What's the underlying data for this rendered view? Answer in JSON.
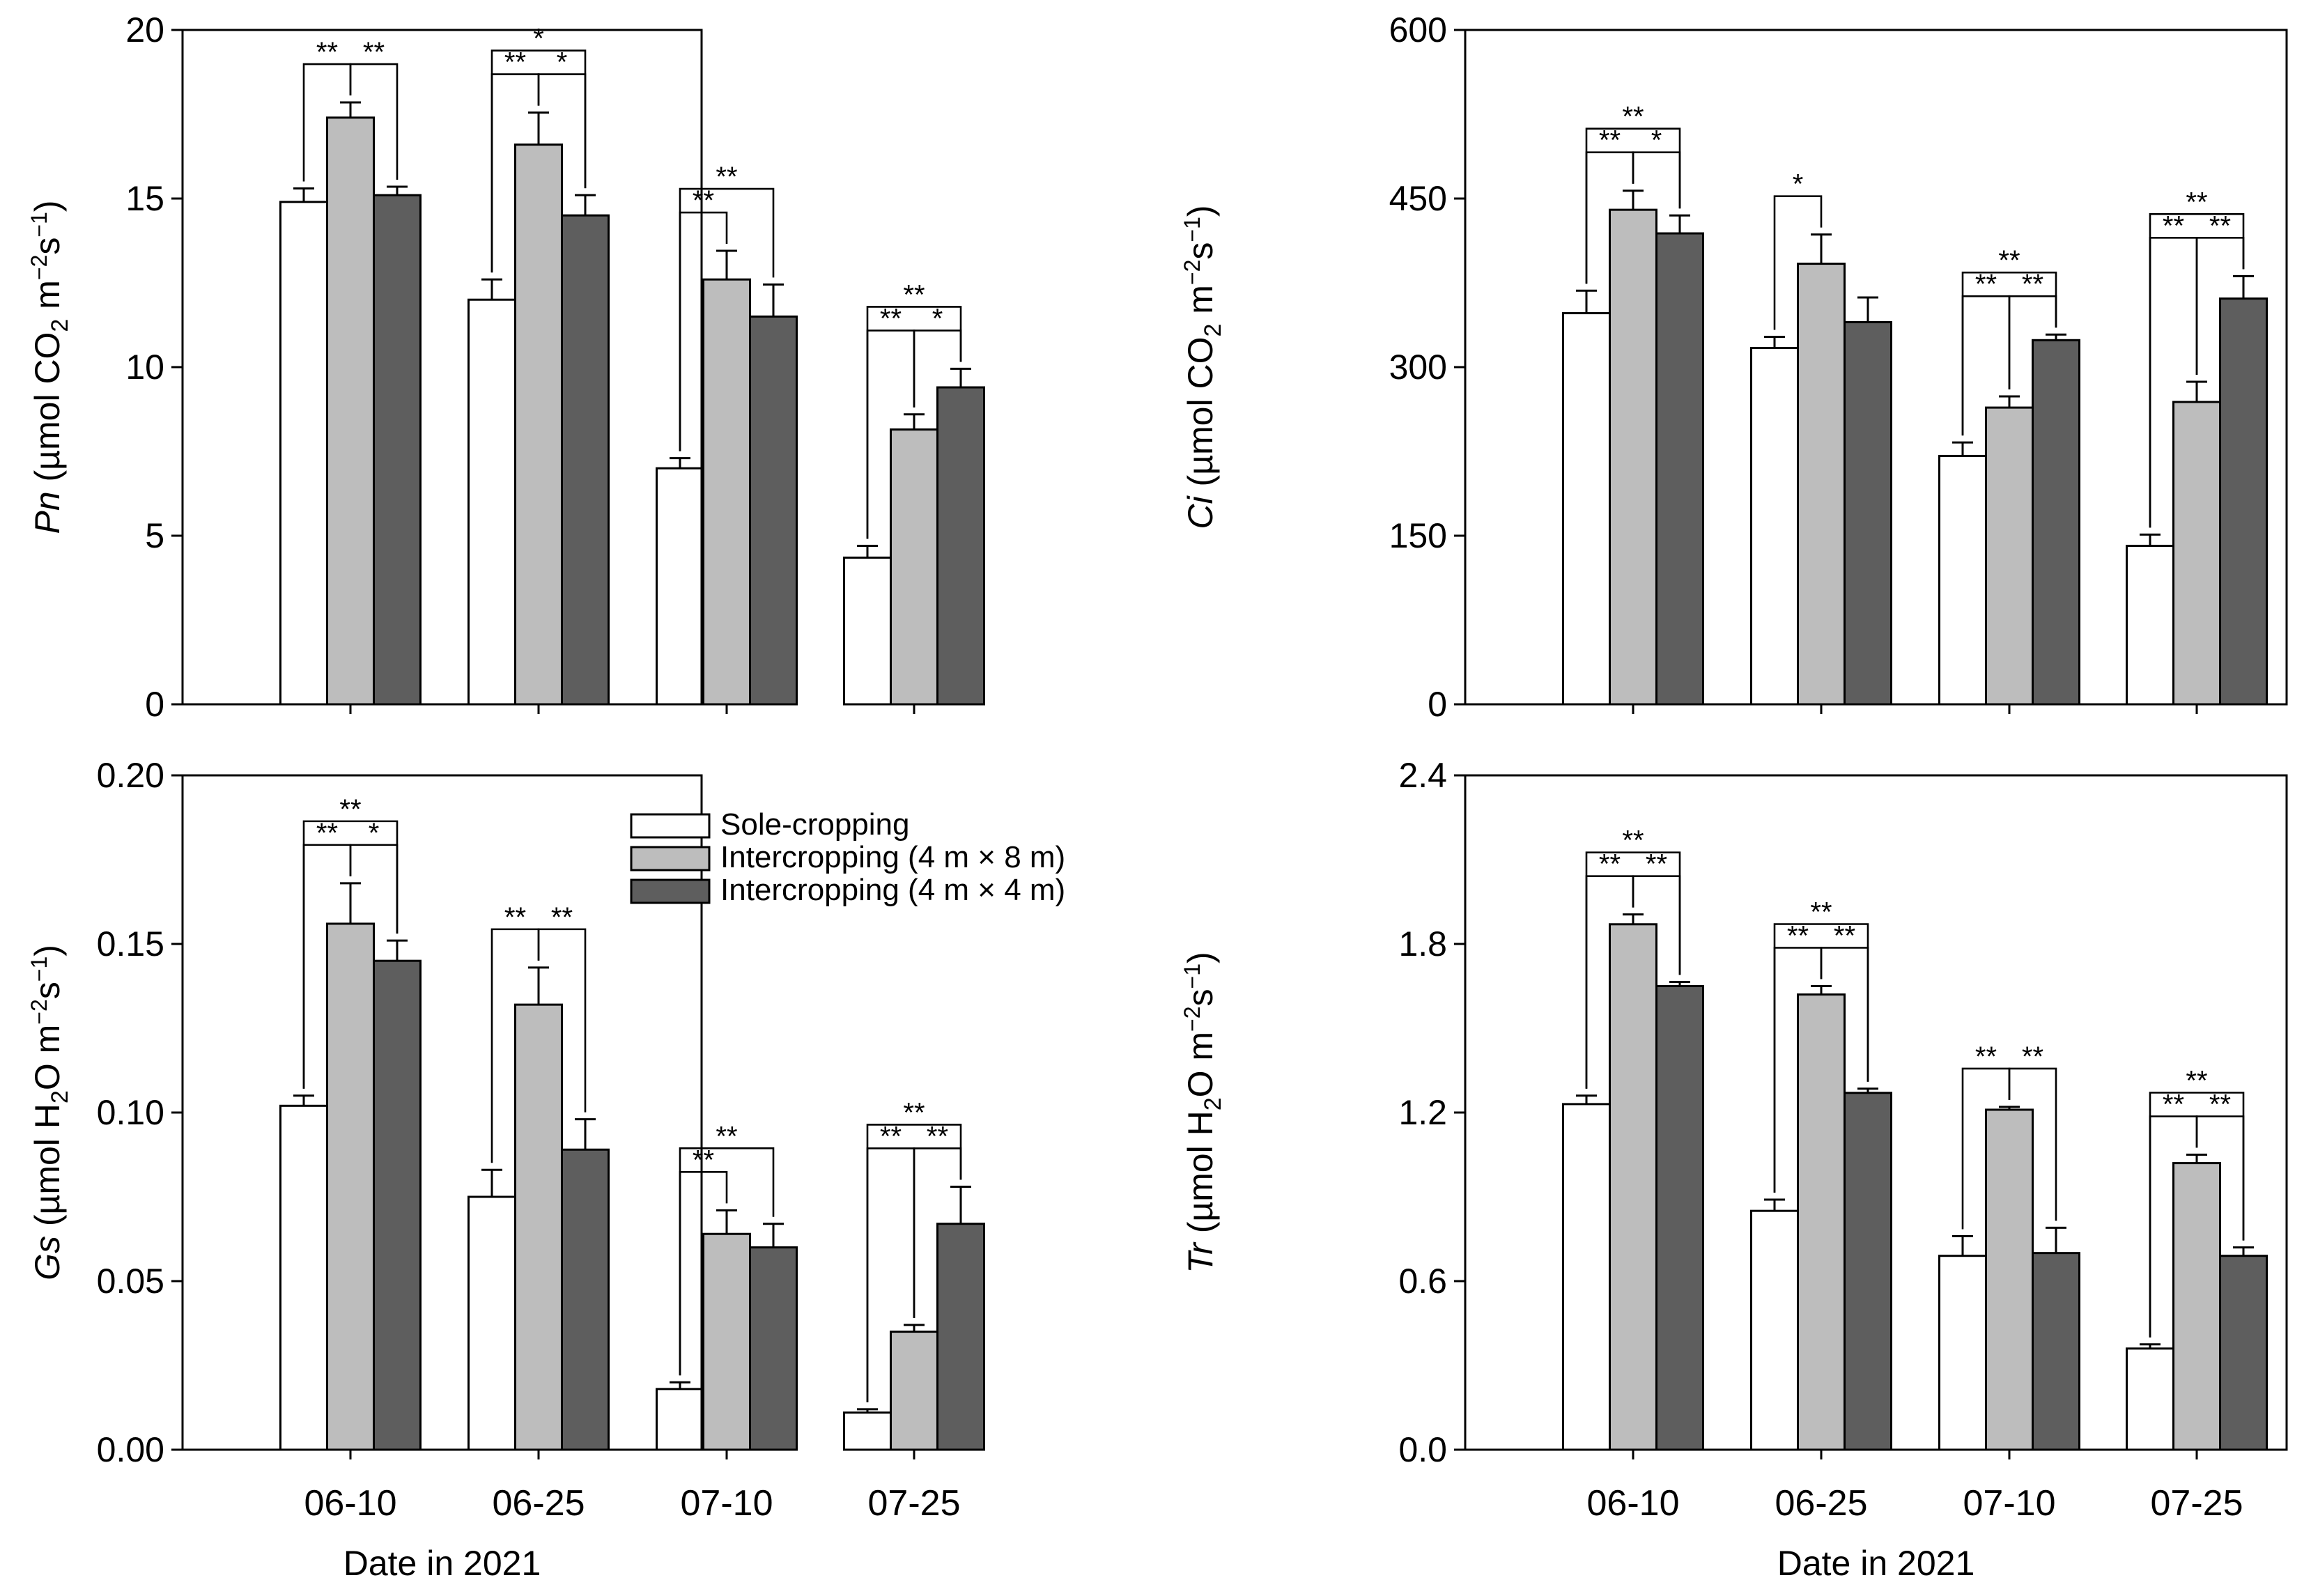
{
  "legend": [
    {
      "name": "Sole-cropping",
      "color": "#ffffff"
    },
    {
      "name": "Intercropping (4 m × 8 m)",
      "color": "#bdbdbd"
    },
    {
      "name": "Intercropping (4 m × 4 m)",
      "color": "#5e5e5e"
    }
  ],
  "chart_data": [
    {
      "type": "bar",
      "id": "pn",
      "ylabel_var": "Pn",
      "ylabel_rest": " (µmol CO",
      "ylabel_sub": "2",
      "ylabel_unit": " m",
      "ylabel_sup1": "−2",
      "ylabel_s": "s",
      "ylabel_sup2": "−1",
      "ylabel_close": ")",
      "xlabel": "",
      "categories": [
        "06-10",
        "06-25",
        "07-10",
        "07-25"
      ],
      "ylim": [
        0,
        20
      ],
      "yticks": [
        "0",
        "5",
        "10",
        "15",
        "20"
      ],
      "series": [
        {
          "name": "Sole-cropping",
          "values": [
            14.9,
            12.0,
            7.0,
            4.35
          ],
          "errors": [
            0.4,
            0.6,
            0.3,
            0.35
          ]
        },
        {
          "name": "Intercropping (4 m × 8 m)",
          "values": [
            17.4,
            16.6,
            12.6,
            8.15
          ],
          "errors": [
            0.45,
            0.95,
            0.85,
            0.45
          ]
        },
        {
          "name": "Intercropping (4 m × 4 m)",
          "values": [
            15.1,
            14.5,
            11.5,
            9.4
          ],
          "errors": [
            0.25,
            0.6,
            0.95,
            0.55
          ]
        }
      ],
      "significance": [
        {
          "cat": 0,
          "from": 0,
          "to": 1,
          "label": "**",
          "level": 0
        },
        {
          "cat": 0,
          "from": 1,
          "to": 2,
          "label": "**",
          "level": 0
        },
        {
          "cat": 1,
          "from": 0,
          "to": 1,
          "label": "**",
          "level": 0
        },
        {
          "cat": 1,
          "from": 1,
          "to": 2,
          "label": "*",
          "level": 0
        },
        {
          "cat": 1,
          "from": 0,
          "to": 2,
          "label": "*",
          "level": 1
        },
        {
          "cat": 2,
          "from": 0,
          "to": 1,
          "label": "**",
          "level": 0
        },
        {
          "cat": 2,
          "from": 0,
          "to": 2,
          "label": "**",
          "level": 1
        },
        {
          "cat": 3,
          "from": 0,
          "to": 1,
          "label": "**",
          "level": 0
        },
        {
          "cat": 3,
          "from": 1,
          "to": 2,
          "label": "*",
          "level": 0
        },
        {
          "cat": 3,
          "from": 0,
          "to": 2,
          "label": "**",
          "level": 1
        }
      ]
    },
    {
      "type": "bar",
      "id": "ci",
      "ylabel_var": "Ci",
      "ylabel_rest": " (µmol CO",
      "ylabel_sub": "2",
      "ylabel_unit": " m",
      "ylabel_sup1": "−2",
      "ylabel_s": "s",
      "ylabel_sup2": "−1",
      "ylabel_close": ")",
      "xlabel": "",
      "categories": [
        "06-10",
        "06-25",
        "07-10",
        "07-25"
      ],
      "ylim": [
        0,
        600
      ],
      "yticks": [
        "0",
        "150",
        "300",
        "450",
        "600"
      ],
      "series": [
        {
          "name": "Sole-cropping",
          "values": [
            348,
            317,
            221,
            141
          ],
          "errors": [
            20,
            10,
            12,
            10
          ]
        },
        {
          "name": "Intercropping (4 m × 8 m)",
          "values": [
            440,
            392,
            264,
            269
          ],
          "errors": [
            17,
            26,
            10,
            18
          ]
        },
        {
          "name": "Intercropping (4 m × 4 m)",
          "values": [
            419,
            340,
            324,
            361
          ],
          "errors": [
            16,
            22,
            5,
            20
          ]
        }
      ],
      "significance": [
        {
          "cat": 0,
          "from": 0,
          "to": 1,
          "label": "**",
          "level": 0
        },
        {
          "cat": 0,
          "from": 1,
          "to": 2,
          "label": "*",
          "level": 0
        },
        {
          "cat": 0,
          "from": 0,
          "to": 2,
          "label": "**",
          "level": 1
        },
        {
          "cat": 1,
          "from": 0,
          "to": 1,
          "label": "*",
          "level": 0
        },
        {
          "cat": 2,
          "from": 0,
          "to": 1,
          "label": "**",
          "level": 0
        },
        {
          "cat": 2,
          "from": 1,
          "to": 2,
          "label": "**",
          "level": 0
        },
        {
          "cat": 2,
          "from": 0,
          "to": 2,
          "label": "**",
          "level": 1
        },
        {
          "cat": 3,
          "from": 0,
          "to": 1,
          "label": "**",
          "level": 0
        },
        {
          "cat": 3,
          "from": 1,
          "to": 2,
          "label": "**",
          "level": 0
        },
        {
          "cat": 3,
          "from": 0,
          "to": 2,
          "label": "**",
          "level": 1
        }
      ]
    },
    {
      "type": "bar",
      "id": "gs",
      "ylabel_var": "Gs",
      "ylabel_rest": " (µmol H",
      "ylabel_sub": "2",
      "ylabel_unit": "O m",
      "ylabel_sup1": "−2",
      "ylabel_s": "s",
      "ylabel_sup2": "−1",
      "ylabel_close": ")",
      "xlabel": "Date in 2021",
      "categories": [
        "06-10",
        "06-25",
        "07-10",
        "07-25"
      ],
      "ylim": [
        0,
        0.2
      ],
      "yticks": [
        "0.00",
        "0.05",
        "0.10",
        "0.15",
        "0.20"
      ],
      "series": [
        {
          "name": "Sole-cropping",
          "values": [
            0.102,
            0.075,
            0.018,
            0.011
          ],
          "errors": [
            0.003,
            0.008,
            0.002,
            0.001
          ]
        },
        {
          "name": "Intercropping (4 m × 8 m)",
          "values": [
            0.156,
            0.132,
            0.064,
            0.035
          ],
          "errors": [
            0.012,
            0.011,
            0.007,
            0.002
          ]
        },
        {
          "name": "Intercropping (4 m × 4 m)",
          "values": [
            0.145,
            0.089,
            0.06,
            0.067
          ],
          "errors": [
            0.006,
            0.009,
            0.007,
            0.011
          ]
        }
      ],
      "significance": [
        {
          "cat": 0,
          "from": 0,
          "to": 1,
          "label": "**",
          "level": 0
        },
        {
          "cat": 0,
          "from": 1,
          "to": 2,
          "label": "*",
          "level": 0
        },
        {
          "cat": 0,
          "from": 0,
          "to": 2,
          "label": "**",
          "level": 1
        },
        {
          "cat": 1,
          "from": 0,
          "to": 1,
          "label": "**",
          "level": 0
        },
        {
          "cat": 1,
          "from": 1,
          "to": 2,
          "label": "**",
          "level": 0
        },
        {
          "cat": 2,
          "from": 0,
          "to": 1,
          "label": "**",
          "level": 0
        },
        {
          "cat": 2,
          "from": 0,
          "to": 2,
          "label": "**",
          "level": 1
        },
        {
          "cat": 3,
          "from": 0,
          "to": 1,
          "label": "**",
          "level": 0
        },
        {
          "cat": 3,
          "from": 1,
          "to": 2,
          "label": "**",
          "level": 0
        },
        {
          "cat": 3,
          "from": 0,
          "to": 2,
          "label": "**",
          "level": 1
        }
      ]
    },
    {
      "type": "bar",
      "id": "tr",
      "ylabel_var": "Tr",
      "ylabel_rest": " (µmol H",
      "ylabel_sub": "2",
      "ylabel_unit": "O m",
      "ylabel_sup1": "−2",
      "ylabel_s": "s",
      "ylabel_sup2": "−1",
      "ylabel_close": ")",
      "xlabel": "Date in 2021",
      "categories": [
        "06-10",
        "06-25",
        "07-10",
        "07-25"
      ],
      "ylim": [
        0,
        2.4
      ],
      "yticks": [
        "0.0",
        "0.6",
        "1.2",
        "1.8",
        "2.4"
      ],
      "series": [
        {
          "name": "Sole-cropping",
          "values": [
            1.23,
            0.85,
            0.69,
            0.36
          ],
          "errors": [
            0.03,
            0.04,
            0.07,
            0.015
          ]
        },
        {
          "name": "Intercropping (4 m × 8 m)",
          "values": [
            1.87,
            1.62,
            1.21,
            1.02
          ],
          "errors": [
            0.035,
            0.03,
            0.01,
            0.03
          ]
        },
        {
          "name": "Intercropping (4 m × 4 m)",
          "values": [
            1.65,
            1.27,
            0.7,
            0.69
          ],
          "errors": [
            0.015,
            0.015,
            0.09,
            0.03
          ]
        }
      ],
      "significance": [
        {
          "cat": 0,
          "from": 0,
          "to": 1,
          "label": "**",
          "level": 0
        },
        {
          "cat": 0,
          "from": 1,
          "to": 2,
          "label": "**",
          "level": 0
        },
        {
          "cat": 0,
          "from": 0,
          "to": 2,
          "label": "**",
          "level": 1
        },
        {
          "cat": 1,
          "from": 0,
          "to": 1,
          "label": "**",
          "level": 0
        },
        {
          "cat": 1,
          "from": 1,
          "to": 2,
          "label": "**",
          "level": 0
        },
        {
          "cat": 1,
          "from": 0,
          "to": 2,
          "label": "**",
          "level": 1
        },
        {
          "cat": 2,
          "from": 0,
          "to": 1,
          "label": "**",
          "level": 0
        },
        {
          "cat": 2,
          "from": 1,
          "to": 2,
          "label": "**",
          "level": 0
        },
        {
          "cat": 3,
          "from": 0,
          "to": 1,
          "label": "**",
          "level": 0
        },
        {
          "cat": 3,
          "from": 1,
          "to": 2,
          "label": "**",
          "level": 0
        },
        {
          "cat": 3,
          "from": 0,
          "to": 2,
          "label": "**",
          "level": 1
        }
      ]
    }
  ]
}
